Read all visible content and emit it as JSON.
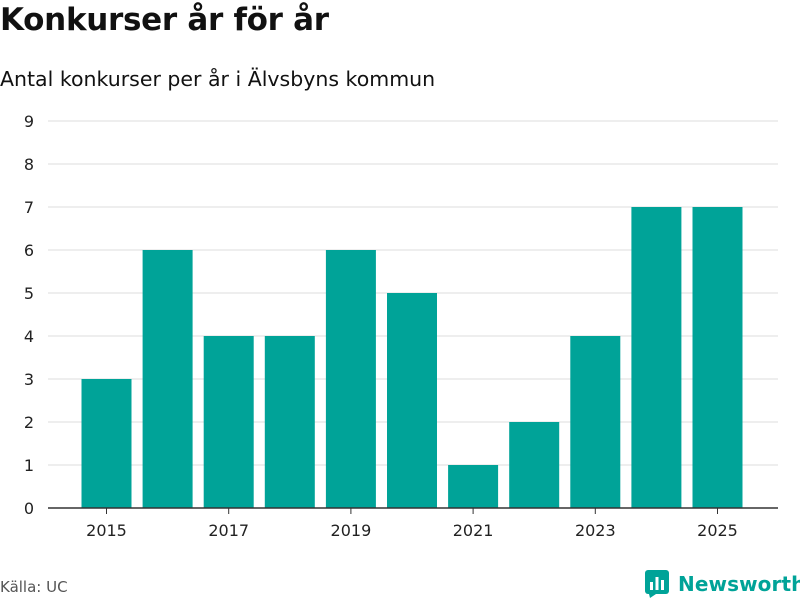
{
  "chart_data": {
    "type": "bar",
    "title": "Konkurser år för år",
    "subtitle": "Antal konkurser per år i Älvsbyns kommun",
    "categories": [
      "2015",
      "2016",
      "2017",
      "2018",
      "2019",
      "2020",
      "2021",
      "2022",
      "2023",
      "2024",
      "2025"
    ],
    "values": [
      3,
      6,
      4,
      4,
      6,
      5,
      1,
      2,
      4,
      7,
      7
    ],
    "x_tick_labels": [
      "2015",
      "2017",
      "2019",
      "2021",
      "2023",
      "2025"
    ],
    "y_ticks": [
      "0",
      "1",
      "2",
      "3",
      "4",
      "5",
      "6",
      "7",
      "8",
      "9"
    ],
    "ylim": [
      0,
      9
    ],
    "xlabel": "",
    "ylabel": "",
    "grid": true,
    "legend": "none",
    "bar_color": "#00a398"
  },
  "footer": {
    "source": "Källa: UC",
    "brand": "Newsworthy"
  },
  "icons": {
    "brand_logo": "newsworthy-logo-icon"
  },
  "colors": {
    "accent": "#00a398",
    "grid": "#dddddd",
    "axis": "#333333"
  }
}
